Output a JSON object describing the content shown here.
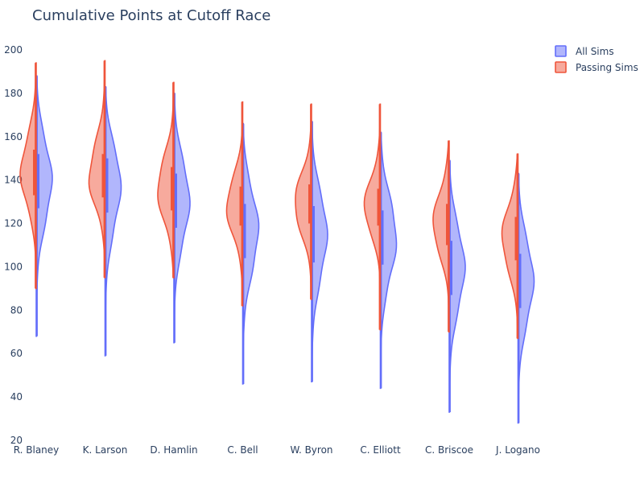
{
  "chart_data": {
    "type": "violin",
    "title": "Cumulative Points at Cutoff Race",
    "xlabel": "",
    "ylabel": "",
    "ylim": [
      20,
      210
    ],
    "yticks": [
      20,
      40,
      60,
      80,
      100,
      120,
      140,
      160,
      180,
      200
    ],
    "categories": [
      "R. Blaney",
      "K. Larson",
      "D. Hamlin",
      "C. Bell",
      "W. Byron",
      "C. Elliott",
      "C. Briscoe",
      "J. Logano"
    ],
    "legend_position": "top-right",
    "series": [
      {
        "name": "All Sims",
        "side": "right",
        "color": "#636efa",
        "fill": "rgba(99,110,250,0.5)",
        "min": [
          68,
          59,
          65,
          46,
          47,
          44,
          33,
          28
        ],
        "q1": [
          127,
          125,
          118,
          104,
          102,
          101,
          87,
          81
        ],
        "median": [
          140,
          139,
          131,
          117,
          116,
          114,
          100,
          94
        ],
        "q3": [
          152,
          150,
          143,
          129,
          128,
          126,
          112,
          106
        ],
        "max": [
          188,
          183,
          180,
          166,
          167,
          162,
          149,
          143
        ]
      },
      {
        "name": "Passing Sims",
        "side": "left",
        "color": "#ef553b",
        "fill": "rgba(239,85,59,0.5)",
        "min": [
          90,
          95,
          95,
          82,
          85,
          71,
          70,
          67
        ],
        "q1": [
          133,
          132,
          126,
          119,
          120,
          119,
          110,
          103
        ],
        "median": [
          143,
          141,
          136,
          128,
          129,
          127,
          119,
          113
        ],
        "q3": [
          154,
          152,
          146,
          137,
          138,
          136,
          129,
          123
        ],
        "max": [
          194,
          195,
          185,
          176,
          175,
          175,
          158,
          152
        ]
      }
    ]
  }
}
